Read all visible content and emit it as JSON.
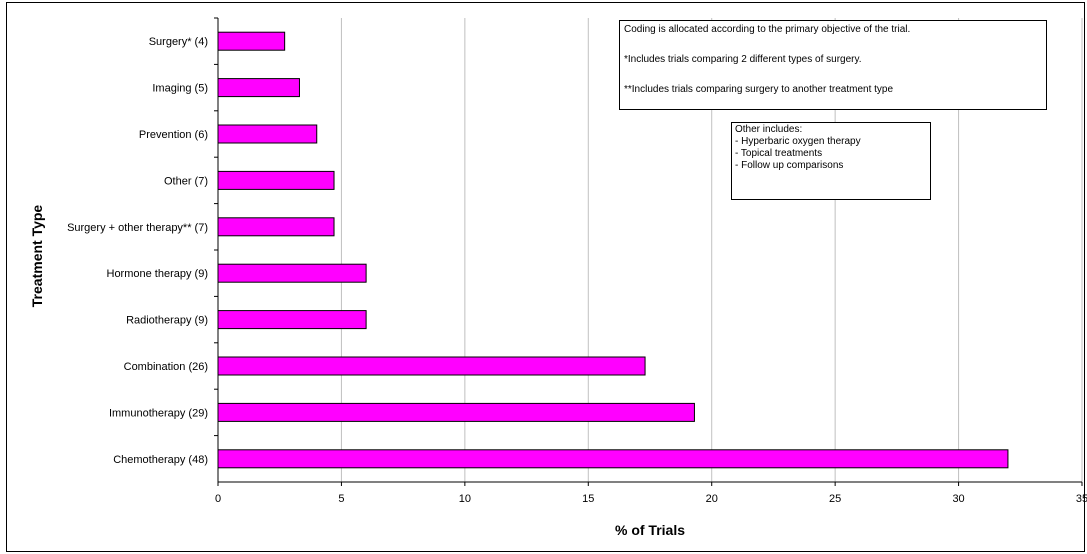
{
  "chart_data": {
    "type": "bar",
    "orientation": "horizontal",
    "categories": [
      "Surgery* (4)",
      "Imaging (5)",
      "Prevention (6)",
      "Other (7)",
      "Surgery + other therapy** (7)",
      "Hormone therapy (9)",
      "Radiotherapy (9)",
      "Combination (26)",
      "Immunotherapy (29)",
      "Chemotherapy (48)"
    ],
    "values": [
      2.7,
      3.3,
      4.0,
      4.7,
      4.7,
      6.0,
      6.0,
      17.3,
      19.3,
      32.0
    ],
    "xlabel": "% of Trials",
    "ylabel": "Treatment Type",
    "xlim": [
      0,
      35
    ],
    "xticks": [
      0,
      5,
      10,
      15,
      20,
      25,
      30,
      35
    ],
    "grid": "vertical",
    "bar_color": "#ff00ff",
    "bar_edge_color": "#000000"
  },
  "annotations": {
    "coding_note": [
      "Coding is allocated according to the primary objective of the trial.",
      "*Includes trials comparing 2 different types of surgery.",
      "**Includes trials comparing surgery to another treatment type"
    ],
    "other_note": [
      "Other includes:",
      "- Hyperbaric oxygen therapy",
      "- Topical treatments",
      "- Follow up comparisons"
    ]
  }
}
